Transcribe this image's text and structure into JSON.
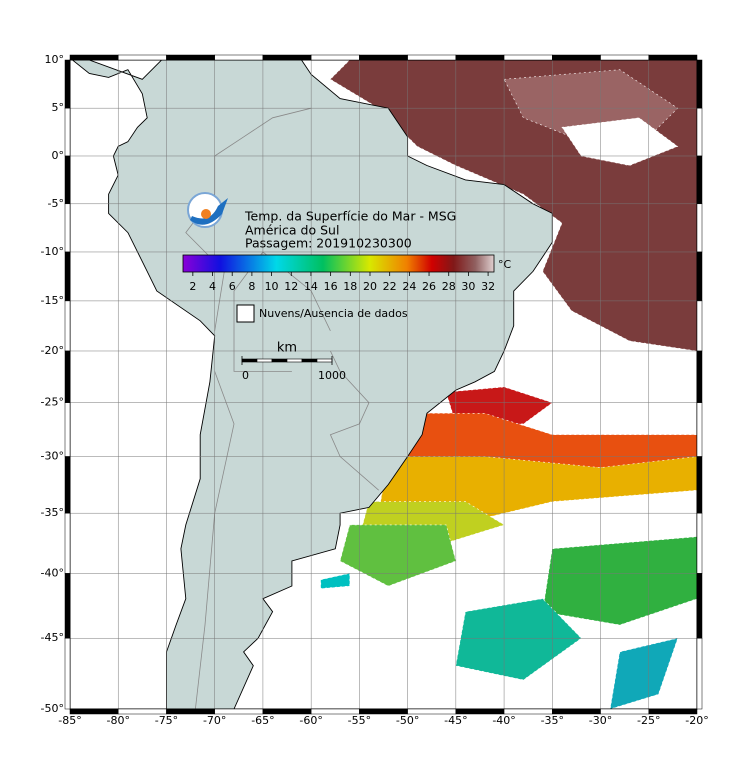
{
  "legend": {
    "title_lines": [
      "Temp. da Superfície do Mar - MSG",
      "América do Sul",
      "Passagem: 201910230300"
    ],
    "colorbar": {
      "unit": "°C",
      "lim": [
        1,
        32.6
      ],
      "ticks": [
        2,
        4,
        6,
        8,
        10,
        12,
        14,
        16,
        18,
        20,
        22,
        24,
        26,
        28,
        30,
        32
      ]
    },
    "no_data_label": "Nuvens/Ausencia de dados"
  },
  "scale_bar": {
    "unit": "km",
    "ticks": [
      0,
      1000
    ]
  },
  "map": {
    "lon_lim": [
      -85,
      -20
    ],
    "lat_lim": [
      -50,
      10
    ],
    "lon_ticks": [
      {
        "value": -85,
        "label": "-85°"
      },
      {
        "value": -80,
        "label": "-80°"
      },
      {
        "value": -75,
        "label": "-75°"
      },
      {
        "value": -70,
        "label": "-70°"
      },
      {
        "value": -65,
        "label": "-65°"
      },
      {
        "value": -60,
        "label": "-60°"
      },
      {
        "value": -55,
        "label": "-55°"
      },
      {
        "value": -50,
        "label": "-50°"
      },
      {
        "value": -45,
        "label": "-45°"
      },
      {
        "value": -40,
        "label": "-40°"
      },
      {
        "value": -35,
        "label": "-35°"
      },
      {
        "value": -30,
        "label": "-30°"
      },
      {
        "value": -25,
        "label": "-25°"
      },
      {
        "value": -20,
        "label": "-20°"
      }
    ],
    "lat_ticks": [
      {
        "value": 10,
        "label": "10°"
      },
      {
        "value": 5,
        "label": "5°"
      },
      {
        "value": 0,
        "label": "0°"
      },
      {
        "value": -5,
        "label": "-5°"
      },
      {
        "value": -10,
        "label": "-10°"
      },
      {
        "value": -15,
        "label": "-15°"
      },
      {
        "value": -20,
        "label": "-20°"
      },
      {
        "value": -25,
        "label": "-25°"
      },
      {
        "value": -30,
        "label": "-30°"
      },
      {
        "value": -35,
        "label": "-35°"
      },
      {
        "value": -40,
        "label": "-40°"
      },
      {
        "value": -45,
        "label": "-45°"
      },
      {
        "value": -50,
        "label": "-50°"
      }
    ]
  }
}
